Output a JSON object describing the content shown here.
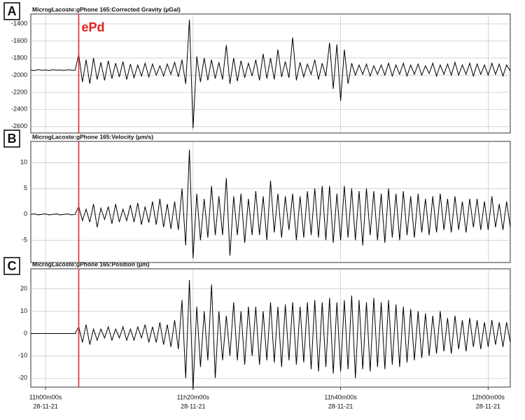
{
  "chart_data": [
    {
      "type": "line",
      "panel_label": "A",
      "title": "MicrogLacoste:gPhone 165:Corrected Gravity (µGal)",
      "color": "#000000",
      "annotation": "ePd",
      "vline": 664.5,
      "vline_color": "#e0201f",
      "xlim": [
        658,
        723
      ],
      "ylim": [
        -2675,
        -1285
      ],
      "yticks": [
        -1400,
        -1600,
        -1800,
        -2000,
        -2200,
        -2400,
        -2600
      ],
      "grid": true,
      "x": [
        658,
        658.5,
        659,
        659.5,
        660,
        660.5,
        661,
        661.5,
        662,
        662.5,
        663,
        663.5,
        664,
        664.5,
        665,
        665.5,
        666,
        666.5,
        667,
        667.5,
        668,
        668.5,
        669,
        669.5,
        670,
        670.5,
        671,
        671.5,
        672,
        672.5,
        673,
        673.5,
        674,
        674.5,
        675,
        675.5,
        676,
        676.5,
        677,
        677.5,
        678,
        678.5,
        679,
        679.5,
        680,
        680.5,
        681,
        681.5,
        682,
        682.5,
        683,
        683.5,
        684,
        684.5,
        685,
        685.5,
        686,
        686.5,
        687,
        687.5,
        688,
        688.5,
        689,
        689.5,
        690,
        690.5,
        691,
        691.5,
        692,
        692.5,
        693,
        693.5,
        694,
        694.5,
        695,
        695.5,
        696,
        696.5,
        697,
        697.5,
        698,
        698.5,
        699,
        699.5,
        700,
        700.5,
        701,
        701.5,
        702,
        702.5,
        703,
        703.5,
        704,
        704.5,
        705,
        705.5,
        706,
        706.5,
        707,
        707.5,
        708,
        708.5,
        709,
        709.5,
        710,
        710.5,
        711,
        711.5,
        712,
        712.5,
        713,
        713.5,
        714,
        714.5,
        715,
        715.5,
        716,
        716.5,
        717,
        717.5,
        718,
        718.5,
        719,
        719.5,
        720,
        720.5,
        721,
        721.5,
        722,
        722.5,
        723
      ],
      "values": [
        -1940,
        -1945,
        -1935,
        -1942,
        -1938,
        -1944,
        -1936,
        -1941,
        -1939,
        -1943,
        -1937,
        -1940,
        -1942,
        -1760,
        -2080,
        -1820,
        -2100,
        -1800,
        -2050,
        -1850,
        -2060,
        -1830,
        -2040,
        -1860,
        -2020,
        -1840,
        -2050,
        -1870,
        -2030,
        -1880,
        -2010,
        -1860,
        -2020,
        -1870,
        -2000,
        -1890,
        -2010,
        -1870,
        -1990,
        -1850,
        -2020,
        -1820,
        -2100,
        -1350,
        -2620,
        -1780,
        -2080,
        -1800,
        -2060,
        -1820,
        -2040,
        -1850,
        -2050,
        -1650,
        -2100,
        -1800,
        -2070,
        -1830,
        -2030,
        -1860,
        -2010,
        -1820,
        -2060,
        -1750,
        -2040,
        -1800,
        -2050,
        -1700,
        -2020,
        -1840,
        -2030,
        -1560,
        -2060,
        -1850,
        -2020,
        -1870,
        -1990,
        -1820,
        -2050,
        -1860,
        -2010,
        -1620,
        -2160,
        -1640,
        -2300,
        -1700,
        -2100,
        -1860,
        -2000,
        -1880,
        -1990,
        -1870,
        -2010,
        -1890,
        -1990,
        -1880,
        -2000,
        -1860,
        -2010,
        -1880,
        -1990,
        -1860,
        -2010,
        -1880,
        -1990,
        -1870,
        -2000,
        -1890,
        -1980,
        -1860,
        -2010,
        -1880,
        -1990,
        -1870,
        -2000,
        -1850,
        -2000,
        -1880,
        -1990,
        -1860,
        -2010,
        -1870,
        -1990,
        -1880,
        -2000,
        -1860,
        -1990,
        -1870,
        -2010,
        -1880,
        -1950
      ]
    },
    {
      "type": "line",
      "panel_label": "B",
      "title": "MicrogLacoste:gPhone 165:Velocity (µm/s)",
      "color": "#000000",
      "vline": 664.5,
      "vline_color": "#e0201f",
      "xlim": [
        658,
        723
      ],
      "ylim": [
        -9.3,
        14.1
      ],
      "yticks": [
        10,
        5,
        0,
        -5
      ],
      "grid": true,
      "x": [
        658,
        658.5,
        659,
        659.5,
        660,
        660.5,
        661,
        661.5,
        662,
        662.5,
        663,
        663.5,
        664,
        664.5,
        665,
        665.5,
        666,
        666.5,
        667,
        667.5,
        668,
        668.5,
        669,
        669.5,
        670,
        670.5,
        671,
        671.5,
        672,
        672.5,
        673,
        673.5,
        674,
        674.5,
        675,
        675.5,
        676,
        676.5,
        677,
        677.5,
        678,
        678.5,
        679,
        679.5,
        680,
        680.5,
        681,
        681.5,
        682,
        682.5,
        683,
        683.5,
        684,
        684.5,
        685,
        685.5,
        686,
        686.5,
        687,
        687.5,
        688,
        688.5,
        689,
        689.5,
        690,
        690.5,
        691,
        691.5,
        692,
        692.5,
        693,
        693.5,
        694,
        694.5,
        695,
        695.5,
        696,
        696.5,
        697,
        697.5,
        698,
        698.5,
        699,
        699.5,
        700,
        700.5,
        701,
        701.5,
        702,
        702.5,
        703,
        703.5,
        704,
        704.5,
        705,
        705.5,
        706,
        706.5,
        707,
        707.5,
        708,
        708.5,
        709,
        709.5,
        710,
        710.5,
        711,
        711.5,
        712,
        712.5,
        713,
        713.5,
        714,
        714.5,
        715,
        715.5,
        716,
        716.5,
        717,
        717.5,
        718,
        718.5,
        719,
        719.5,
        720,
        720.5,
        721,
        721.5,
        722,
        722.5,
        723
      ],
      "values": [
        0,
        0.1,
        -0.1,
        0,
        0.1,
        -0.1,
        0,
        0.1,
        -0.1,
        0,
        0.1,
        -0.1,
        0,
        1.5,
        -1.2,
        1.0,
        -1.5,
        2.0,
        -2.5,
        1.2,
        -1.0,
        1.5,
        -1.8,
        2.0,
        -1.5,
        1.0,
        -1.2,
        1.8,
        -1.5,
        2.2,
        -2.0,
        1.5,
        -1.6,
        2.5,
        -2.0,
        3.0,
        -2.5,
        2.0,
        -2.8,
        2.5,
        -3.0,
        5.0,
        -6.0,
        12.5,
        -8.5,
        4.0,
        -5.0,
        3.0,
        -4.5,
        5.5,
        -4.0,
        3.5,
        -4.0,
        7.0,
        -8.0,
        3.5,
        -4.0,
        4.0,
        -5.5,
        3.0,
        -4.0,
        4.5,
        -4.0,
        3.5,
        -5.0,
        6.5,
        -3.5,
        4.0,
        -4.5,
        3.5,
        -3.0,
        4.0,
        -5.0,
        3.5,
        -4.5,
        4.5,
        -4.0,
        5.0,
        -4.5,
        5.5,
        -5.0,
        5.5,
        -5.5,
        4.0,
        -5.0,
        5.5,
        -4.5,
        5.0,
        -5.0,
        4.5,
        -6.0,
        5.0,
        -4.0,
        4.5,
        -5.0,
        4.0,
        -5.5,
        5.0,
        -4.5,
        4.0,
        -5.0,
        4.5,
        -4.0,
        3.5,
        -4.5,
        4.0,
        -3.5,
        3.0,
        -4.0,
        3.5,
        -3.5,
        4.0,
        -3.0,
        3.0,
        -3.5,
        3.5,
        -3.0,
        2.5,
        -3.5,
        3.0,
        -2.5,
        3.0,
        -3.0,
        2.5,
        -3.0,
        3.5,
        -2.5,
        2.0,
        -3.0,
        2.5,
        -2.5
      ]
    },
    {
      "type": "line",
      "panel_label": "C",
      "title": "MicrogLacoste:gPhone 165:Position (µm)",
      "color": "#000000",
      "vline": 664.5,
      "vline_color": "#e0201f",
      "xlim": [
        658,
        723
      ],
      "ylim": [
        -24,
        29
      ],
      "yticks": [
        20,
        10,
        0,
        -10,
        -20
      ],
      "grid": true,
      "xticks": [
        {
          "value": 660,
          "label": "11h00m00s",
          "date": "28-11-21"
        },
        {
          "value": 680,
          "label": "11h20m00s",
          "date": "28-11-21"
        },
        {
          "value": 700,
          "label": "11h40m00s",
          "date": "28-11-21"
        },
        {
          "value": 720,
          "label": "12h00m00s",
          "date": "28-11-21"
        }
      ],
      "x": [
        658,
        658.5,
        659,
        659.5,
        660,
        660.5,
        661,
        661.5,
        662,
        662.5,
        663,
        663.5,
        664,
        664.5,
        665,
        665.5,
        666,
        666.5,
        667,
        667.5,
        668,
        668.5,
        669,
        669.5,
        670,
        670.5,
        671,
        671.5,
        672,
        672.5,
        673,
        673.5,
        674,
        674.5,
        675,
        675.5,
        676,
        676.5,
        677,
        677.5,
        678,
        678.5,
        679,
        679.5,
        680,
        680.5,
        681,
        681.5,
        682,
        682.5,
        683,
        683.5,
        684,
        684.5,
        685,
        685.5,
        686,
        686.5,
        687,
        687.5,
        688,
        688.5,
        689,
        689.5,
        690,
        690.5,
        691,
        691.5,
        692,
        692.5,
        693,
        693.5,
        694,
        694.5,
        695,
        695.5,
        696,
        696.5,
        697,
        697.5,
        698,
        698.5,
        699,
        699.5,
        700,
        700.5,
        701,
        701.5,
        702,
        702.5,
        703,
        703.5,
        704,
        704.5,
        705,
        705.5,
        706,
        706.5,
        707,
        707.5,
        708,
        708.5,
        709,
        709.5,
        710,
        710.5,
        711,
        711.5,
        712,
        712.5,
        713,
        713.5,
        714,
        714.5,
        715,
        715.5,
        716,
        716.5,
        717,
        717.5,
        718,
        718.5,
        719,
        719.5,
        720,
        720.5,
        721,
        721.5,
        722,
        722.5,
        723
      ],
      "values": [
        0,
        0,
        0,
        0,
        0,
        0,
        0,
        0,
        0,
        0,
        0,
        0,
        0,
        3,
        -4,
        4,
        -5,
        2,
        -3,
        2,
        -2,
        3,
        -3,
        2,
        -2,
        3,
        -3,
        2,
        -3,
        3,
        -2,
        4,
        -4,
        3,
        -4,
        5,
        -5,
        4,
        -6,
        6,
        -7,
        15,
        -20,
        24,
        -25,
        12,
        -15,
        10,
        -12,
        22,
        -20,
        10,
        -12,
        8,
        -10,
        14,
        -12,
        10,
        -14,
        12,
        -10,
        12,
        -14,
        10,
        -12,
        14,
        -13,
        12,
        -15,
        13,
        -12,
        14,
        -14,
        12,
        -13,
        14,
        -16,
        15,
        -17,
        14,
        -15,
        16,
        -18,
        14,
        -17,
        15,
        -16,
        17,
        -20,
        15,
        -16,
        14,
        -17,
        16,
        -15,
        14,
        -16,
        15,
        -14,
        13,
        -15,
        12,
        -13,
        11,
        -12,
        10,
        -11,
        9,
        -10,
        8,
        -9,
        10,
        -8,
        7,
        -9,
        8,
        -7,
        6,
        -8,
        7,
        -6,
        6,
        -7,
        5,
        -6,
        6,
        -5,
        5,
        -6,
        5,
        -4
      ]
    }
  ]
}
